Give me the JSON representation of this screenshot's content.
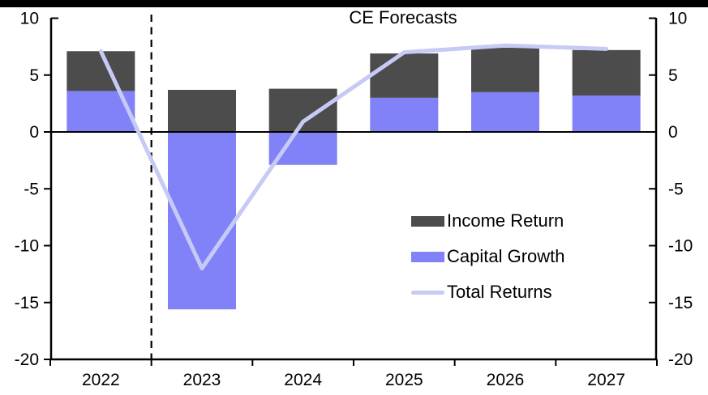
{
  "chart_data": {
    "type": "bar",
    "subtype": "stacked-bars-with-line-overlay",
    "title": "CE Forecasts",
    "categories": [
      "2022",
      "2023",
      "2024",
      "2025",
      "2026",
      "2027"
    ],
    "series": [
      {
        "name": "Income Return",
        "type": "bar",
        "color": "#4c4c4c",
        "values": [
          3.5,
          3.7,
          3.8,
          3.9,
          3.9,
          4.0
        ]
      },
      {
        "name": "Capital Growth",
        "type": "bar",
        "color": "#8182f8",
        "values": [
          3.6,
          -15.6,
          -2.9,
          3.0,
          3.5,
          3.2
        ]
      },
      {
        "name": "Total Returns",
        "type": "line",
        "color": "#c6caf4",
        "values": [
          7.1,
          -12.0,
          0.9,
          7.0,
          7.6,
          7.3
        ]
      }
    ],
    "stacked": true,
    "ylim": [
      -20,
      10
    ],
    "yticks": [
      10,
      5,
      0,
      -5,
      -10,
      -15,
      -20
    ],
    "axes": {
      "left_labels": [
        "10",
        "5",
        "0",
        "-5",
        "-10",
        "-15",
        "-20"
      ],
      "right_labels": [
        "10",
        "5",
        "0",
        "-5",
        "-10",
        "-15",
        "-20"
      ]
    },
    "grid": false,
    "legend": {
      "position": "inside-right",
      "entries": [
        "Income Return",
        "Capital Growth",
        "Total Returns"
      ]
    },
    "forecast_divider": {
      "style": "vertical-dashed",
      "between": [
        "2022",
        "2023"
      ]
    }
  },
  "colors": {
    "background": "#ffffff",
    "frame": "#000000",
    "top_bar": "#000000"
  }
}
